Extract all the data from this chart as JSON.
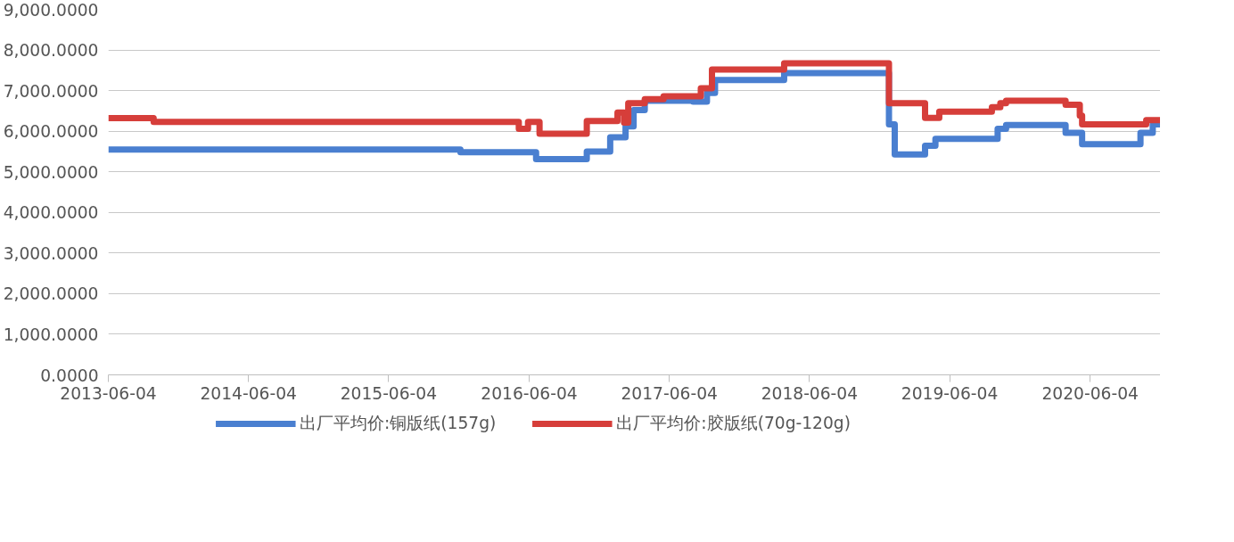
{
  "chart_data": {
    "type": "step",
    "xlim": [
      "2013-06-04",
      "2020-12-04"
    ],
    "xticks": [
      "2013-06-04",
      "2014-06-04",
      "2015-06-04",
      "2016-06-04",
      "2017-06-04",
      "2018-06-04",
      "2019-06-04",
      "2020-06-04"
    ],
    "ylim": [
      0,
      9000
    ],
    "yticks": [
      {
        "value": 0,
        "label": "0.0000"
      },
      {
        "value": 1000,
        "label": "1,000.0000"
      },
      {
        "value": 2000,
        "label": "2,000.0000"
      },
      {
        "value": 3000,
        "label": "3,000.0000"
      },
      {
        "value": 4000,
        "label": "4,000.0000"
      },
      {
        "value": 5000,
        "label": "5,000.0000"
      },
      {
        "value": 6000,
        "label": "6,000.0000"
      },
      {
        "value": 7000,
        "label": "7,000.0000"
      },
      {
        "value": 8000,
        "label": "8,000.0000"
      },
      {
        "value": 9000,
        "label": "9,000.0000"
      }
    ],
    "grid": "y",
    "legend": "bottom",
    "marker": "none",
    "line_style": "solid",
    "series": [
      {
        "name": "出厂平均价:铜版纸(157g)",
        "color": "#4a7fd0",
        "x": [
          "2013-06-04",
          "2015-12-08",
          "2016-06-22",
          "2016-11-01",
          "2017-01-01",
          "2017-02-10",
          "2017-03-03",
          "2017-04-01",
          "2017-08-05",
          "2017-09-10",
          "2017-10-01",
          "2018-03-30",
          "2018-12-28",
          "2019-01-12",
          "2019-04-01",
          "2019-04-28",
          "2019-10-07",
          "2019-10-29",
          "2020-04-01",
          "2020-05-14",
          "2020-10-13",
          "2020-11-14",
          "2020-12-04"
        ],
        "values": [
          5550,
          5480,
          5310,
          5500,
          5850,
          6120,
          6520,
          6750,
          6730,
          6940,
          7260,
          7430,
          6170,
          5430,
          5640,
          5810,
          6060,
          6150,
          5960,
          5680,
          5960,
          6170,
          6170
        ]
      },
      {
        "name": "出厂平均价:胶版纸(70g-120g)",
        "color": "#d63e3a",
        "x": [
          "2013-06-04",
          "2013-09-30",
          "2016-05-08",
          "2016-06-01",
          "2016-07-01",
          "2016-11-01",
          "2017-01-20",
          "2017-02-06",
          "2017-02-17",
          "2017-04-01",
          "2017-05-20",
          "2017-08-25",
          "2017-09-23",
          "2018-03-30",
          "2018-12-28",
          "2019-04-01",
          "2019-05-08",
          "2019-09-22",
          "2019-10-14",
          "2019-10-29",
          "2020-04-01",
          "2020-05-08",
          "2020-05-14",
          "2020-10-28",
          "2020-12-04"
        ],
        "values": [
          6320,
          6230,
          6060,
          6230,
          5940,
          6250,
          6460,
          6210,
          6690,
          6790,
          6860,
          7060,
          7520,
          7670,
          6690,
          6330,
          6480,
          6590,
          6690,
          6750,
          6650,
          6380,
          6170,
          6270,
          6270
        ]
      }
    ]
  }
}
